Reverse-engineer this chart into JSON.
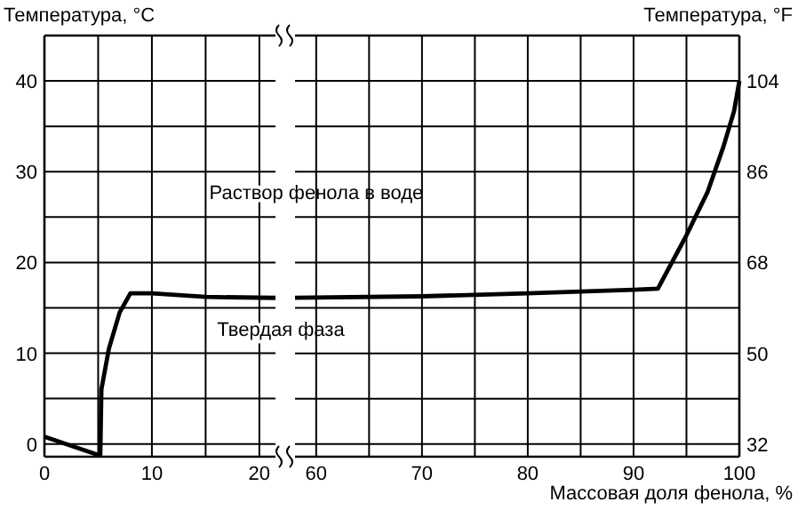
{
  "chart_data": [
    {
      "type": "line",
      "ylabel": "Температура, °C",
      "annotations": [
        "Раствор фенола в воде",
        "Твердая фаза"
      ],
      "x": [
        0,
        5,
        5.2,
        5.3,
        6,
        7,
        8,
        10,
        15,
        21.5
      ],
      "series": [
        {
          "color": "#000000",
          "values": [
            0.8,
            -1.2,
            -1.2,
            6,
            10.5,
            14.5,
            16.6,
            16.6,
            16.2,
            16.1
          ]
        }
      ],
      "xlim": [
        0,
        21.5
      ],
      "ylim": [
        -1.4,
        45
      ],
      "xticks": [
        0,
        {
          "value": 5,
          "label": null
        },
        10,
        {
          "value": 15,
          "label": null
        },
        20
      ],
      "yticks": [
        0,
        {
          "value": 5,
          "label": null
        },
        10,
        {
          "value": 15,
          "label": null
        },
        20,
        {
          "value": 25,
          "label": null
        },
        30,
        {
          "value": 35,
          "label": null
        },
        40,
        {
          "value": 45,
          "label": null
        }
      ],
      "grid": true
    },
    {
      "type": "line",
      "xlabel": "Массовая доля фенола, %",
      "y2label": "Температура, °F",
      "x": [
        58,
        70,
        80,
        90,
        92.3,
        95,
        97,
        98.5,
        99.5,
        100
      ],
      "series": [
        {
          "color": "#000000",
          "axis": "y2",
          "values": [
            61.0,
            61.3,
            61.9,
            62.6,
            62.8,
            73.4,
            82,
            91,
            98,
            104
          ]
        }
      ],
      "xlim": [
        58,
        100
      ],
      "y2lim": [
        29.5,
        113
      ],
      "xticks": [
        60,
        {
          "value": 65,
          "label": null
        },
        70,
        {
          "value": 75,
          "label": null
        },
        80,
        {
          "value": 85,
          "label": null
        },
        90,
        {
          "value": 95,
          "label": null
        },
        100
      ],
      "y2ticks": [
        32,
        {
          "value": 41,
          "label": null
        },
        50,
        {
          "value": 59,
          "label": null
        },
        68,
        {
          "value": 77,
          "label": null
        },
        86,
        {
          "value": 95,
          "label": null
        },
        104,
        {
          "value": 113,
          "label": null
        }
      ],
      "grid": true
    }
  ]
}
